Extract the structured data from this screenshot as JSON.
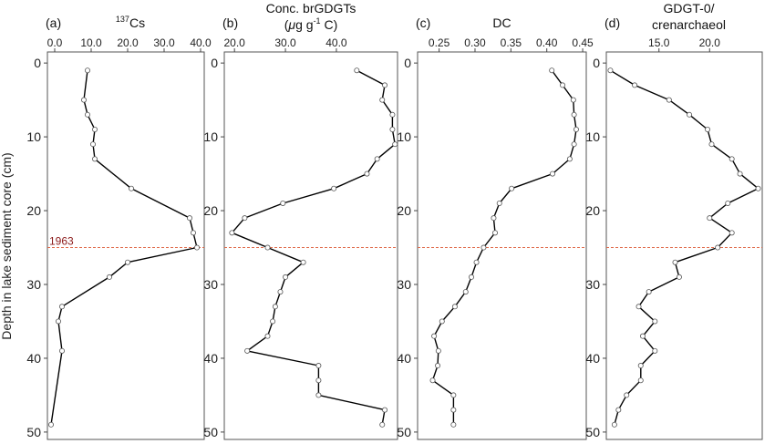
{
  "figure": {
    "y_axis_label": "Depth in lake sediment core (cm)",
    "marker_label": "1963",
    "marker_depth": 25,
    "colors": {
      "line": "#000000",
      "point_stroke": "#555555",
      "marker_line": "#e06a4a",
      "marker_text": "#8b1a1a",
      "frame": "#555555"
    }
  },
  "chart_data": [
    {
      "type": "line",
      "panel_letter": "(a)",
      "title_parts": {
        "superscript": "137",
        "main": "Cs"
      },
      "xlim": [
        -2,
        41
      ],
      "x_ticks": [
        0,
        10,
        20,
        30,
        40
      ],
      "x_tick_labels": [
        "0.0",
        "10.0",
        "20.0",
        "30.0",
        "40.0"
      ],
      "ylim": [
        51,
        -1.5
      ],
      "y_ticks": [
        0,
        10,
        20,
        30,
        40,
        50
      ],
      "y_tick_labels": [
        "0",
        "10",
        "20",
        "30",
        "40",
        "50"
      ],
      "series": [
        {
          "points": [
            {
              "x": 9.0,
              "y": 1
            },
            {
              "x": 8.0,
              "y": 5
            },
            {
              "x": 9.0,
              "y": 7
            },
            {
              "x": 11.0,
              "y": 9
            },
            {
              "x": 10.5,
              "y": 11
            },
            {
              "x": 11.0,
              "y": 13
            },
            {
              "x": 21.0,
              "y": 17
            },
            {
              "x": 37.0,
              "y": 21
            },
            {
              "x": 38.0,
              "y": 23
            },
            {
              "x": 39.0,
              "y": 25
            },
            {
              "x": 20.0,
              "y": 27
            },
            {
              "x": 15.0,
              "y": 29
            },
            {
              "x": 2.0,
              "y": 33
            },
            {
              "x": 1.0,
              "y": 35
            },
            {
              "x": 2.0,
              "y": 39
            },
            {
              "x": -1.0,
              "y": 49
            }
          ]
        }
      ]
    },
    {
      "type": "line",
      "panel_letter": "(b)",
      "title_lines": [
        "Conc. brGDGTs"
      ],
      "title_unit_parts": {
        "open": "(",
        "mu": "μ",
        "g": "g g",
        "sup": "-1",
        "rest": " C)"
      },
      "xlim": [
        18,
        52
      ],
      "x_ticks": [
        20,
        30,
        40
      ],
      "x_tick_labels": [
        "20.0",
        "30.0",
        "40.0"
      ],
      "ylim": [
        51,
        -1.5
      ],
      "y_ticks": [
        0,
        10,
        20,
        30,
        40,
        50
      ],
      "y_tick_labels": [
        "0",
        "10",
        "20",
        "30",
        "40",
        "50"
      ],
      "series": [
        {
          "points": [
            {
              "x": 44.0,
              "y": 1
            },
            {
              "x": 49.5,
              "y": 3
            },
            {
              "x": 49.0,
              "y": 5
            },
            {
              "x": 51.0,
              "y": 7
            },
            {
              "x": 51.0,
              "y": 9
            },
            {
              "x": 51.5,
              "y": 11
            },
            {
              "x": 48.0,
              "y": 13
            },
            {
              "x": 46.0,
              "y": 15
            },
            {
              "x": 39.5,
              "y": 17
            },
            {
              "x": 29.5,
              "y": 19
            },
            {
              "x": 22.0,
              "y": 21
            },
            {
              "x": 19.5,
              "y": 23
            },
            {
              "x": 26.5,
              "y": 25
            },
            {
              "x": 33.5,
              "y": 27
            },
            {
              "x": 30.0,
              "y": 29
            },
            {
              "x": 29.0,
              "y": 31
            },
            {
              "x": 28.0,
              "y": 33
            },
            {
              "x": 27.5,
              "y": 35
            },
            {
              "x": 26.5,
              "y": 37
            },
            {
              "x": 22.5,
              "y": 39
            },
            {
              "x": 36.5,
              "y": 41
            },
            {
              "x": 36.5,
              "y": 43
            },
            {
              "x": 36.5,
              "y": 45
            },
            {
              "x": 49.5,
              "y": 47
            },
            {
              "x": 49.0,
              "y": 49
            }
          ]
        }
      ]
    },
    {
      "type": "line",
      "panel_letter": "(c)",
      "title_lines": [
        "DC"
      ],
      "xlim": [
        0.22,
        0.455
      ],
      "x_ticks": [
        0.25,
        0.3,
        0.35,
        0.4,
        0.45
      ],
      "x_tick_labels": [
        "0.25",
        "0.30",
        "0.35",
        "0.40",
        "0.45"
      ],
      "ylim": [
        51,
        -1.5
      ],
      "y_ticks": [
        0,
        10,
        20,
        30,
        40,
        50
      ],
      "y_tick_labels": [
        "0",
        "10",
        "20",
        "30",
        "40",
        "50"
      ],
      "series": [
        {
          "points": [
            {
              "x": 0.407,
              "y": 1
            },
            {
              "x": 0.422,
              "y": 3
            },
            {
              "x": 0.437,
              "y": 5
            },
            {
              "x": 0.438,
              "y": 7
            },
            {
              "x": 0.441,
              "y": 9
            },
            {
              "x": 0.438,
              "y": 11
            },
            {
              "x": 0.432,
              "y": 13
            },
            {
              "x": 0.408,
              "y": 15
            },
            {
              "x": 0.351,
              "y": 17
            },
            {
              "x": 0.334,
              "y": 19
            },
            {
              "x": 0.326,
              "y": 21
            },
            {
              "x": 0.328,
              "y": 23
            },
            {
              "x": 0.312,
              "y": 25
            },
            {
              "x": 0.302,
              "y": 27
            },
            {
              "x": 0.295,
              "y": 29
            },
            {
              "x": 0.287,
              "y": 31
            },
            {
              "x": 0.272,
              "y": 33
            },
            {
              "x": 0.254,
              "y": 35
            },
            {
              "x": 0.243,
              "y": 37
            },
            {
              "x": 0.249,
              "y": 39
            },
            {
              "x": 0.248,
              "y": 41
            },
            {
              "x": 0.241,
              "y": 43
            },
            {
              "x": 0.27,
              "y": 45
            },
            {
              "x": 0.27,
              "y": 47
            },
            {
              "x": 0.27,
              "y": 49
            }
          ]
        }
      ]
    },
    {
      "type": "line",
      "panel_letter": "(d)",
      "title_lines": [
        "GDGT-0/",
        "crenarchaeol"
      ],
      "xlim": [
        9.8,
        25.2
      ],
      "x_ticks": [
        15,
        20
      ],
      "x_tick_labels": [
        "15.0",
        "20.0"
      ],
      "ylim": [
        51,
        -1.5
      ],
      "y_ticks": [
        0,
        10,
        20,
        30,
        40,
        50
      ],
      "y_tick_labels": [
        "0",
        "10",
        "20",
        "30",
        "40",
        "50"
      ],
      "series": [
        {
          "points": [
            {
              "x": 10.2,
              "y": 1
            },
            {
              "x": 12.6,
              "y": 3
            },
            {
              "x": 16.0,
              "y": 5
            },
            {
              "x": 18.0,
              "y": 7
            },
            {
              "x": 19.8,
              "y": 9
            },
            {
              "x": 20.2,
              "y": 11
            },
            {
              "x": 22.2,
              "y": 13
            },
            {
              "x": 23.0,
              "y": 15
            },
            {
              "x": 24.8,
              "y": 17
            },
            {
              "x": 21.8,
              "y": 19
            },
            {
              "x": 20.0,
              "y": 21
            },
            {
              "x": 22.2,
              "y": 23
            },
            {
              "x": 20.8,
              "y": 25
            },
            {
              "x": 16.6,
              "y": 27
            },
            {
              "x": 17.0,
              "y": 29
            },
            {
              "x": 14.0,
              "y": 31
            },
            {
              "x": 13.0,
              "y": 33
            },
            {
              "x": 14.6,
              "y": 35
            },
            {
              "x": 13.4,
              "y": 37
            },
            {
              "x": 14.6,
              "y": 39
            },
            {
              "x": 13.2,
              "y": 41
            },
            {
              "x": 13.2,
              "y": 43
            },
            {
              "x": 11.8,
              "y": 45
            },
            {
              "x": 11.0,
              "y": 47
            },
            {
              "x": 10.6,
              "y": 49
            }
          ]
        }
      ]
    }
  ]
}
